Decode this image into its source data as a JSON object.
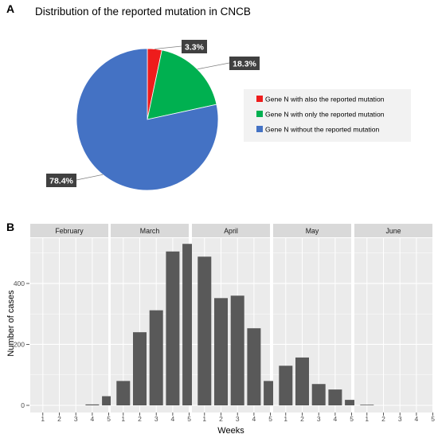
{
  "panels": {
    "a": {
      "letter": "A"
    },
    "b": {
      "letter": "B"
    }
  },
  "colors": {
    "red": "#ee1c1c",
    "green": "#00b050",
    "blue": "#4472c4",
    "bar": "#595959",
    "strip": "#d9d9d9",
    "panel_bg": "#ebebeb",
    "grid": "#ffffff",
    "label_bg": "#404040",
    "legend_bg": "#f2f2f2"
  },
  "chart_data": [
    {
      "type": "pie",
      "title": "Distribution of the reported mutation in CNCB",
      "slices": [
        {
          "label": "Gene N with also the reported mutation",
          "value": 3.3,
          "display": "3.3%",
          "color": "#ee1c1c"
        },
        {
          "label": "Gene N with only the reported mutation",
          "value": 18.3,
          "display": "18.3%",
          "color": "#00b050"
        },
        {
          "label": "Gene N without the reported mutation",
          "value": 78.4,
          "display": "78.4%",
          "color": "#4472c4"
        }
      ],
      "legend_position": "right"
    },
    {
      "type": "bar",
      "xlabel": "Weeks",
      "ylabel": "Number of cases",
      "ylim": [
        0,
        560
      ],
      "yticks": [
        0,
        200,
        400
      ],
      "grid": true,
      "week_labels": [
        "1",
        "2",
        "3",
        "4",
        "5"
      ],
      "facets": [
        {
          "name": "February",
          "values": [
            0,
            0,
            0,
            3,
            30
          ]
        },
        {
          "name": "March",
          "values": [
            80,
            240,
            312,
            505,
            530
          ]
        },
        {
          "name": "April",
          "values": [
            488,
            352,
            360,
            253,
            80
          ]
        },
        {
          "name": "May",
          "values": [
            130,
            157,
            70,
            52,
            18
          ]
        },
        {
          "name": "June",
          "values": [
            2,
            0,
            0,
            0,
            0
          ]
        }
      ]
    }
  ]
}
